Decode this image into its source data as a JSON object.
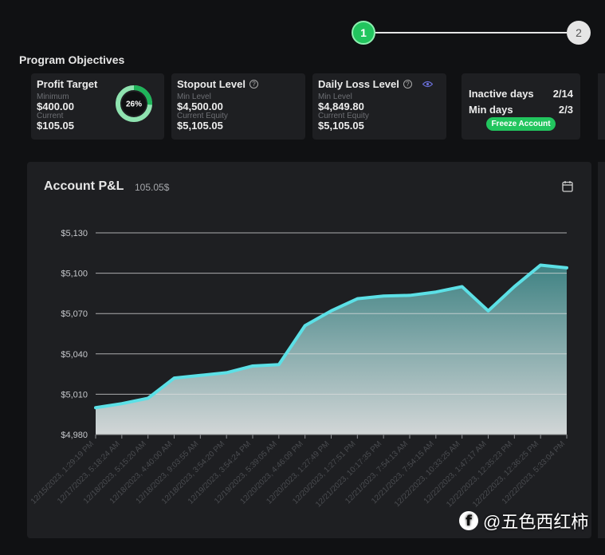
{
  "stepper": {
    "steps": [
      "1",
      "2"
    ],
    "active_step": 1
  },
  "section_title": "Program Objectives",
  "cards": {
    "profit_target": {
      "title": "Profit Target",
      "min_label": "Minimum",
      "min_value": "$400.00",
      "current_label": "Current",
      "current_value": "$105.05",
      "progress_label": "26%",
      "progress": 0.26
    },
    "stopout": {
      "title": "Stopout Level",
      "info_icon": "question-circle-icon",
      "min_label": "Min Level",
      "min_value": "$4,500.00",
      "equity_label": "Current Equity",
      "equity_value": "$5,105.05"
    },
    "daily_loss": {
      "title": "Daily Loss Level",
      "info_icon": "question-circle-icon",
      "view_icon": "eye-icon",
      "min_label": "Min Level",
      "min_value": "$4,849.80",
      "equity_label": "Current Equity",
      "equity_value": "$5,105.05"
    },
    "days": {
      "inactive_label": "Inactive days",
      "inactive_value": "2/14",
      "min_label": "Min days",
      "min_value": "2/3",
      "freeze_button": "Freeze Account"
    }
  },
  "chart_panel": {
    "title": "Account P&L",
    "value": "105.05$",
    "calendar_icon": "calendar-icon"
  },
  "chart_data": {
    "type": "area",
    "title": "Account P&L",
    "xlabel": "",
    "ylabel": "",
    "ylim": [
      4980,
      5130
    ],
    "yticks": [
      4980,
      5010,
      5040,
      5070,
      5100,
      5130
    ],
    "ytick_labels": [
      "$4,980",
      "$5,010",
      "$5,040",
      "$5,070",
      "$5,100",
      "$5,130"
    ],
    "grid": true,
    "x": [
      "12/15/2023, 1:29:19 PM",
      "12/17/2023, 5:18:24 AM",
      "12/18/2023, 5:15:20 AM",
      "12/18/2023, 4:40:00 AM",
      "12/18/2023, 9:03:55 AM",
      "12/18/2023, 3:54:20 PM",
      "12/19/2023, 3:54:24 PM",
      "12/19/2023, 5:39:05 AM",
      "12/20/2023, 4:46:09 PM",
      "12/20/2023, 1:27:49 PM",
      "12/20/2023, 1:27:51 PM",
      "12/21/2023, 10:17:35 PM",
      "12/21/2023, 7:54:13 AM",
      "12/21/2023, 7:54:15 AM",
      "12/22/2023, 10:33:25 AM",
      "12/22/2023, 1:47:17 AM",
      "12/22/2023, 12:35:23 PM",
      "12/22/2023, 12:36:25 PM",
      "12/22/2023, 5:33:04 PM"
    ],
    "values": [
      5000,
      5003,
      5007,
      5022,
      5024,
      5026,
      5031,
      5032,
      5061,
      5072,
      5081,
      5083,
      5083.5,
      5086,
      5090,
      5072,
      5090,
      5106,
      5104
    ],
    "line_color": "#5ce0e6",
    "fill_top_color": "#3f8283",
    "fill_bottom_color": "#d2d6d7"
  },
  "watermark": {
    "logo": "f",
    "text": "@五色西红柿"
  }
}
